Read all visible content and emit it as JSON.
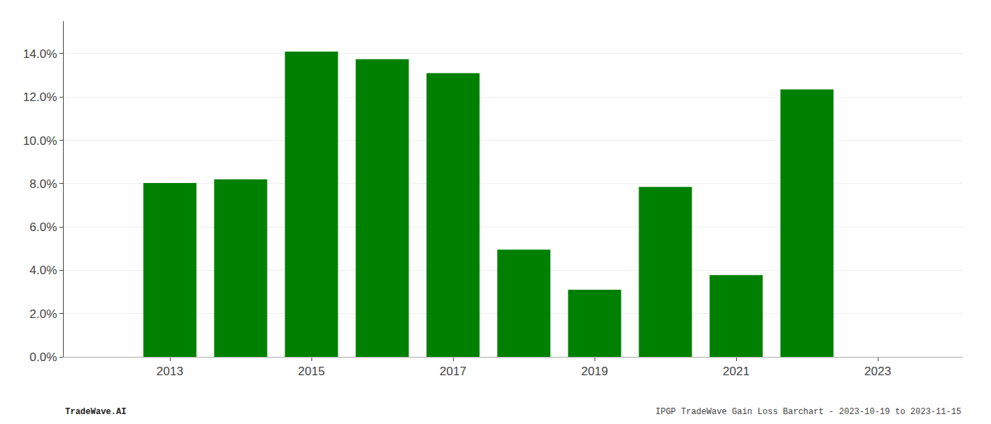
{
  "chart_data": {
    "type": "bar",
    "x": [
      2013,
      2014,
      2015,
      2016,
      2017,
      2018,
      2019,
      2020,
      2021,
      2022,
      2023
    ],
    "values": [
      0.0803,
      0.082,
      0.141,
      0.1375,
      0.131,
      0.0495,
      0.031,
      0.0785,
      0.0378,
      0.1235,
      null
    ],
    "color": "#008000",
    "xlim": [
      2011.5,
      2024.2
    ],
    "xticks": [
      2013,
      2015,
      2017,
      2019,
      2021,
      2023
    ],
    "ylim": [
      0,
      0.155
    ],
    "yticks": [
      {
        "value": 0.0,
        "label": "0.0%"
      },
      {
        "value": 0.02,
        "label": "2.0%"
      },
      {
        "value": 0.04,
        "label": "4.0%"
      },
      {
        "value": 0.06,
        "label": "6.0%"
      },
      {
        "value": 0.08,
        "label": "8.0%"
      },
      {
        "value": 0.1,
        "label": "10.0%"
      },
      {
        "value": 0.12,
        "label": "12.0%"
      },
      {
        "value": 0.14,
        "label": "14.0%"
      }
    ],
    "grid": true,
    "annotations": [
      "TradeWave.AI",
      "IPGP TradeWave Gain Loss Barchart - 2023-10-19 to 2023-11-15"
    ]
  }
}
